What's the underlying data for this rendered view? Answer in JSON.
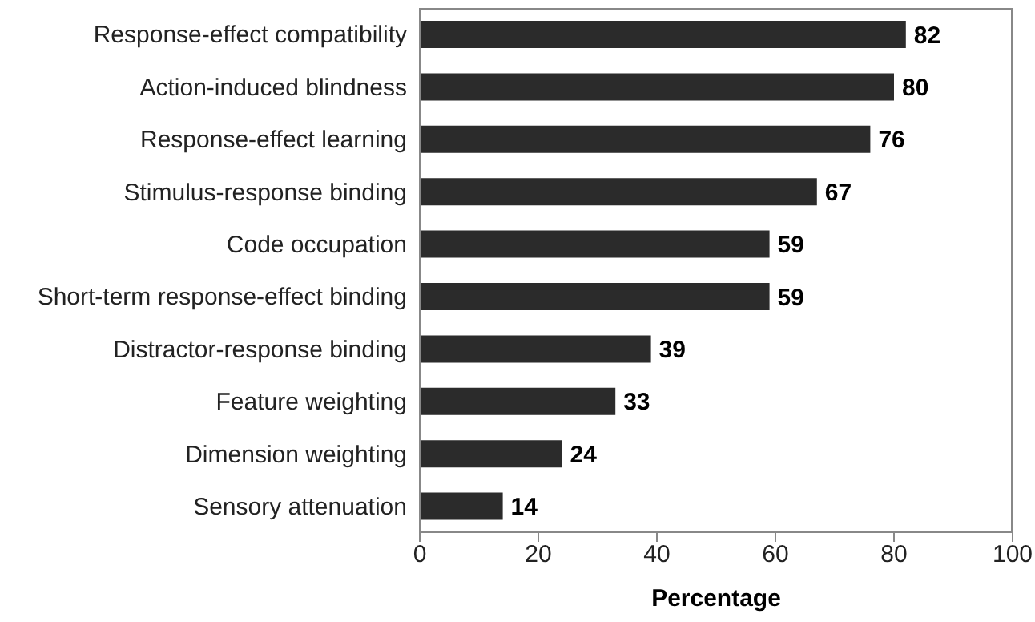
{
  "chart_data": {
    "type": "bar",
    "orientation": "horizontal",
    "categories": [
      "Response-effect compatibility",
      "Action-induced blindness",
      "Response-effect learning",
      "Stimulus-response binding",
      "Code occupation",
      "Short-term response-effect binding",
      "Distractor-response binding",
      "Feature weighting",
      "Dimension weighting",
      "Sensory attenuation"
    ],
    "values": [
      82,
      80,
      76,
      67,
      59,
      59,
      39,
      33,
      24,
      14
    ],
    "color": "#2b2b2b",
    "xlabel": "Percentage",
    "xlim": [
      0,
      100
    ],
    "xticks": [
      0,
      20,
      40,
      60,
      80,
      100
    ],
    "data_labels": true,
    "grid": false
  }
}
